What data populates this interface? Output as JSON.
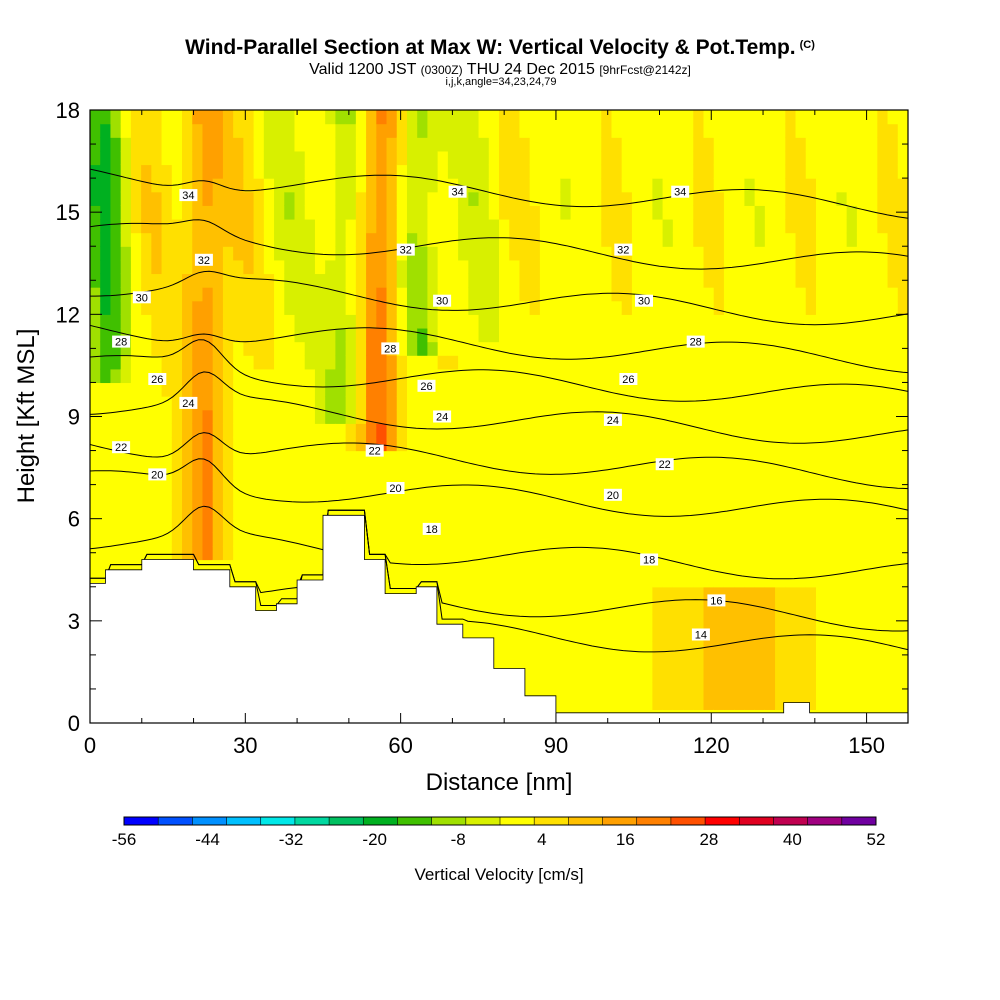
{
  "header": {
    "title": "Wind-Parallel Section at Max W: Vertical Velocity & Pot.Temp.",
    "copyright": "(C)",
    "subtitle_main": "Valid 1200 JST",
    "subtitle_utc": "(0300Z)",
    "subtitle_date": "THU 24 Dec 2015",
    "subtitle_fcst": "[9hrFcst@2142z]",
    "subtitle2": "i,j,k,angle=34,23,24,79"
  },
  "colors": {
    "background": "#ffff00",
    "terrain": "#ffffff",
    "contour": "#000000",
    "palette": [
      "#0000ff",
      "#0050ff",
      "#0090ff",
      "#00c0ff",
      "#00e8e8",
      "#00d8a0",
      "#00c060",
      "#00b020",
      "#40c000",
      "#a0e000",
      "#d8f000",
      "#ffff00",
      "#ffe000",
      "#ffc000",
      "#ffa000",
      "#ff8000",
      "#ff5000",
      "#ff0000",
      "#e00020",
      "#c00050",
      "#a00080",
      "#7000a0"
    ]
  },
  "chart_data": {
    "type": "heatmap",
    "xlabel": "Distance [nm]",
    "ylabel": "Height [Kft MSL]",
    "xlim": [
      0,
      158
    ],
    "ylim": [
      0,
      18
    ],
    "xticks": [
      0,
      30,
      60,
      90,
      120,
      150
    ],
    "yticks": [
      0,
      3,
      6,
      9,
      12,
      15,
      18
    ],
    "colorbar": {
      "label": "Vertical Velocity [cm/s]",
      "ticks": [
        -56,
        -44,
        -32,
        -20,
        -8,
        4,
        16,
        28,
        40,
        52
      ],
      "min": -56,
      "max": 52
    },
    "terrain_profile": [
      [
        0,
        4.1
      ],
      [
        3,
        4.5
      ],
      [
        10,
        4.8
      ],
      [
        20,
        4.5
      ],
      [
        27,
        4.0
      ],
      [
        32,
        3.3
      ],
      [
        36,
        3.5
      ],
      [
        40,
        4.2
      ],
      [
        45,
        6.1
      ],
      [
        51,
        6.1
      ],
      [
        53,
        4.8
      ],
      [
        57,
        3.8
      ],
      [
        63,
        4.0
      ],
      [
        67,
        2.9
      ],
      [
        72,
        2.5
      ],
      [
        78,
        1.6
      ],
      [
        84,
        0.8
      ],
      [
        90,
        0.3
      ],
      [
        130,
        0.3
      ],
      [
        134,
        0.6
      ],
      [
        139,
        0.3
      ],
      [
        158,
        0.3
      ]
    ],
    "theta_contours": [
      {
        "value": 14,
        "label_x": 117,
        "label_y": 2.6
      },
      {
        "value": 16,
        "label_x": 120,
        "label_y": 3.5
      },
      {
        "value": 18,
        "label_x": 108,
        "label_y": 4.8
      },
      {
        "value": 20,
        "label_x": 100,
        "label_y": 6.7
      },
      {
        "value": 22,
        "label_x": 110,
        "label_y": 7.6
      },
      {
        "value": 24,
        "label_x": 100,
        "label_y": 8.9
      },
      {
        "value": 26,
        "label_x": 102,
        "label_y": 10.1
      },
      {
        "value": 28,
        "label_x": 117,
        "label_y": 11.2
      },
      {
        "value": 30,
        "label_x": 107,
        "label_y": 12.4
      },
      {
        "value": 32,
        "label_x": 103,
        "label_y": 13.9
      },
      {
        "value": 34,
        "label_x": 115,
        "label_y": 15.6
      }
    ],
    "theta_labels": [
      {
        "value": "34",
        "x": 19,
        "y": 15.5
      },
      {
        "value": "34",
        "x": 71,
        "y": 15.6
      },
      {
        "value": "34",
        "x": 114,
        "y": 15.6
      },
      {
        "value": "32",
        "x": 22,
        "y": 13.6
      },
      {
        "value": "32",
        "x": 61,
        "y": 13.9
      },
      {
        "value": "32",
        "x": 103,
        "y": 13.9
      },
      {
        "value": "30",
        "x": 10,
        "y": 12.5
      },
      {
        "value": "30",
        "x": 68,
        "y": 12.4
      },
      {
        "value": "30",
        "x": 107,
        "y": 12.4
      },
      {
        "value": "28",
        "x": 6,
        "y": 11.2
      },
      {
        "value": "28",
        "x": 58,
        "y": 11.0
      },
      {
        "value": "28",
        "x": 117,
        "y": 11.2
      },
      {
        "value": "26",
        "x": 13,
        "y": 10.1
      },
      {
        "value": "26",
        "x": 65,
        "y": 9.9
      },
      {
        "value": "26",
        "x": 104,
        "y": 10.1
      },
      {
        "value": "24",
        "x": 19,
        "y": 9.4
      },
      {
        "value": "24",
        "x": 68,
        "y": 9.0
      },
      {
        "value": "24",
        "x": 101,
        "y": 8.9
      },
      {
        "value": "22",
        "x": 6,
        "y": 8.1
      },
      {
        "value": "22",
        "x": 55,
        "y": 8.0
      },
      {
        "value": "22",
        "x": 111,
        "y": 7.6
      },
      {
        "value": "20",
        "x": 13,
        "y": 7.3
      },
      {
        "value": "20",
        "x": 59,
        "y": 6.9
      },
      {
        "value": "20",
        "x": 101,
        "y": 6.7
      },
      {
        "value": "18",
        "x": 66,
        "y": 5.7
      },
      {
        "value": "18",
        "x": 108,
        "y": 4.8
      },
      {
        "value": "16",
        "x": 121,
        "y": 3.6
      },
      {
        "value": "14",
        "x": 118,
        "y": 2.6
      }
    ],
    "velocity_features": [
      {
        "name": "updraft",
        "x": 22,
        "w": 4,
        "y0": 5,
        "y1": 18,
        "value": 18
      },
      {
        "name": "updraft",
        "x": 56,
        "w": 4,
        "y0": 8,
        "y1": 18,
        "value": 22
      },
      {
        "name": "downdraft",
        "x": 3,
        "w": 4,
        "y0": 10,
        "y1": 18,
        "value": -14
      },
      {
        "name": "downdraft",
        "x": 49,
        "w": 4,
        "y0": 9,
        "y1": 18,
        "value": -12
      },
      {
        "name": "downdraft",
        "x": 64,
        "w": 4,
        "y0": 11,
        "y1": 18,
        "value": -14
      },
      {
        "name": "weak-up",
        "x": 125,
        "w": 12,
        "y0": 0.5,
        "y1": 4,
        "value": 10
      }
    ]
  }
}
